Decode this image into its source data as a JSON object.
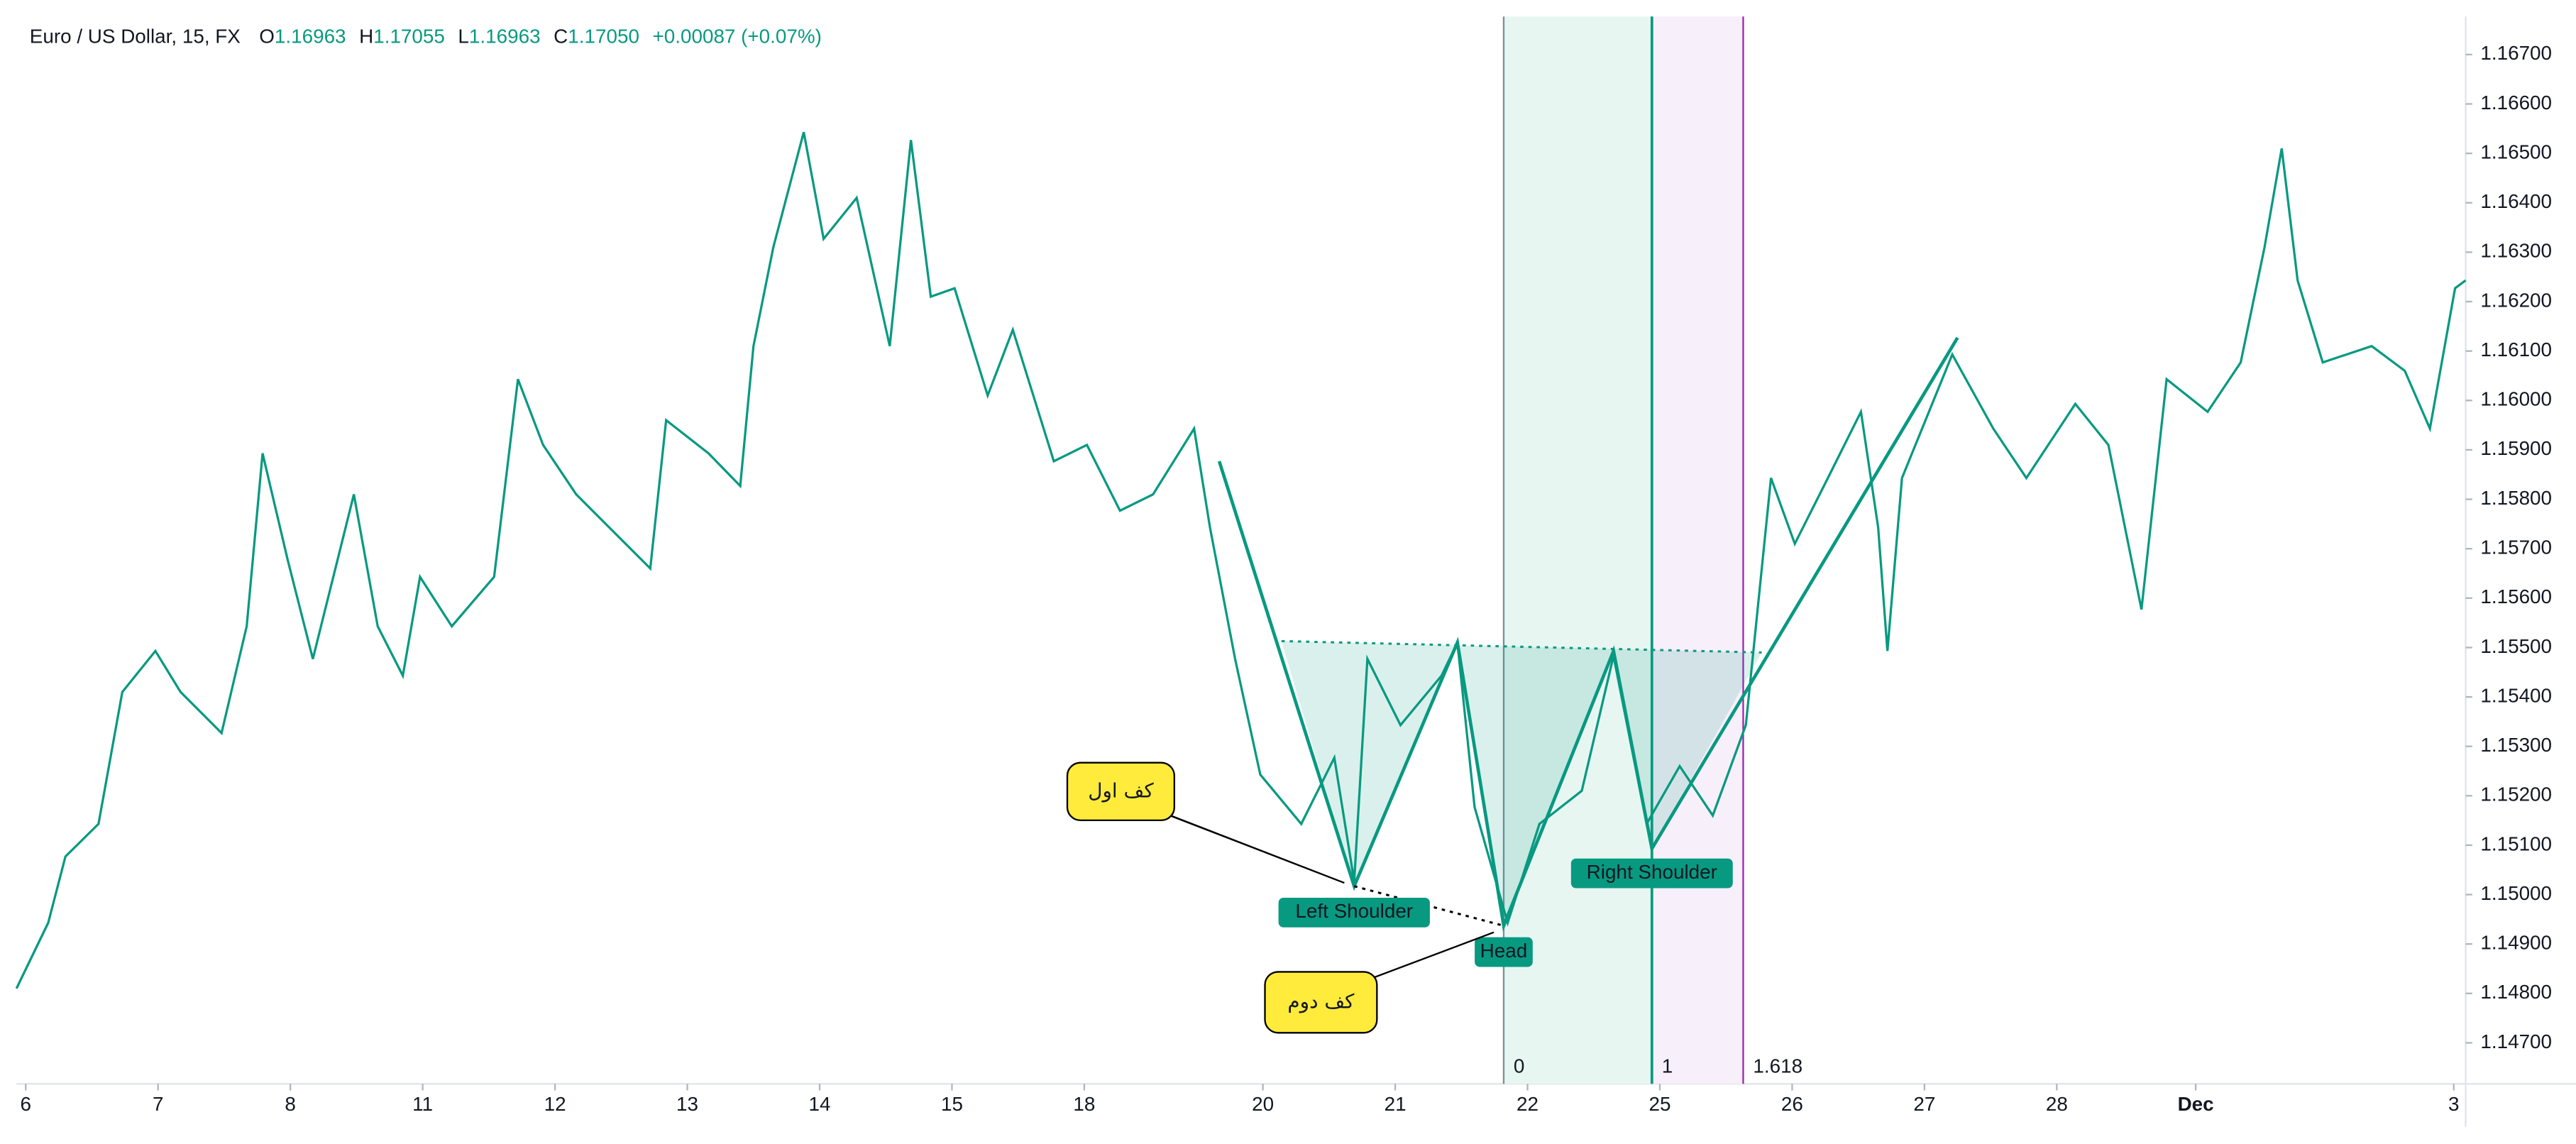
{
  "header": {
    "symbol": "Euro / US Dollar, 15, FX",
    "fields": [
      {
        "label": "O",
        "value": "1.16963"
      },
      {
        "label": "H",
        "value": "1.17055"
      },
      {
        "label": "L",
        "value": "1.16963"
      },
      {
        "label": "C",
        "value": "1.17050"
      }
    ],
    "change": "+0.00087 (+0.07%)"
  },
  "chart_data": {
    "type": "line",
    "color": "#089981",
    "grid": false,
    "xlim": [
      -0.07,
      18.44
    ],
    "ylim": [
      1.14617,
      1.16777
    ],
    "xticks": [
      {
        "value": 0,
        "label": "6"
      },
      {
        "value": 1,
        "label": "7"
      },
      {
        "value": 2,
        "label": "8"
      },
      {
        "value": 3,
        "label": "11"
      },
      {
        "value": 4,
        "label": "12"
      },
      {
        "value": 5,
        "label": "13"
      },
      {
        "value": 6,
        "label": "14"
      },
      {
        "value": 7,
        "label": "15"
      },
      {
        "value": 8,
        "label": "18"
      },
      {
        "value": 9.35,
        "label": "20"
      },
      {
        "value": 10.35,
        "label": "21"
      },
      {
        "value": 11.35,
        "label": "22"
      },
      {
        "value": 12.35,
        "label": "25"
      },
      {
        "value": 13.35,
        "label": "26"
      },
      {
        "value": 14.35,
        "label": "27"
      },
      {
        "value": 15.35,
        "label": "28"
      },
      {
        "value": 16.4,
        "label": "Dec"
      },
      {
        "value": 18.35,
        "label": "3"
      }
    ],
    "yticks": [
      {
        "value": 1.147,
        "label": "1.14700"
      },
      {
        "value": 1.148,
        "label": "1.14800"
      },
      {
        "value": 1.149,
        "label": "1.14900"
      },
      {
        "value": 1.15,
        "label": "1.15000"
      },
      {
        "value": 1.151,
        "label": "1.15100"
      },
      {
        "value": 1.152,
        "label": "1.15200"
      },
      {
        "value": 1.153,
        "label": "1.15300"
      },
      {
        "value": 1.154,
        "label": "1.15400"
      },
      {
        "value": 1.155,
        "label": "1.15500"
      },
      {
        "value": 1.156,
        "label": "1.15600"
      },
      {
        "value": 1.157,
        "label": "1.15700"
      },
      {
        "value": 1.158,
        "label": "1.15800"
      },
      {
        "value": 1.159,
        "label": "1.15900"
      },
      {
        "value": 1.16,
        "label": "1.16000"
      },
      {
        "value": 1.161,
        "label": "1.16100"
      },
      {
        "value": 1.162,
        "label": "1.16200"
      },
      {
        "value": 1.163,
        "label": "1.16300"
      },
      {
        "value": 1.164,
        "label": "1.16400"
      },
      {
        "value": 1.165,
        "label": "1.16500"
      },
      {
        "value": 1.166,
        "label": "1.16600"
      },
      {
        "value": 1.167,
        "label": "1.16700"
      }
    ],
    "x": [
      -0.07,
      0.17,
      0.3,
      0.55,
      0.73,
      0.98,
      1.17,
      1.48,
      1.67,
      1.79,
      1.98,
      2.17,
      2.48,
      2.66,
      2.85,
      2.98,
      3.22,
      3.54,
      3.72,
      3.91,
      4.16,
      4.41,
      4.72,
      4.84,
      5.16,
      5.4,
      5.5,
      5.65,
      5.88,
      6.03,
      6.28,
      6.53,
      6.69,
      6.84,
      7.02,
      7.27,
      7.46,
      7.77,
      8.02,
      8.27,
      8.52,
      8.83,
      8.95,
      9.14,
      9.33,
      9.64,
      9.89,
      10.04,
      10.14,
      10.39,
      10.7,
      10.82,
      10.95,
      11.2,
      11.44,
      11.76,
      12.0,
      12.25,
      12.5,
      12.75,
      13.0,
      13.19,
      13.37,
      13.62,
      13.87,
      14.0,
      14.07,
      14.18,
      14.56,
      14.87,
      15.12,
      15.49,
      15.74,
      15.99,
      16.18,
      16.49,
      16.74,
      16.92,
      17.05,
      17.17,
      17.36,
      17.73,
      17.98,
      18.17,
      18.36,
      18.44
    ],
    "values": [
      1.1481,
      1.14943,
      1.15077,
      1.15143,
      1.1541,
      1.15493,
      1.1541,
      1.15327,
      1.15543,
      1.15893,
      1.15677,
      1.15477,
      1.1581,
      1.15543,
      1.15443,
      1.15643,
      1.15543,
      1.15643,
      1.16043,
      1.1591,
      1.1581,
      1.15743,
      1.1566,
      1.1596,
      1.15893,
      1.15827,
      1.1611,
      1.1631,
      1.16543,
      1.16327,
      1.1641,
      1.1611,
      1.16527,
      1.1621,
      1.16227,
      1.1601,
      1.16143,
      1.15877,
      1.1591,
      1.15777,
      1.1581,
      1.15943,
      1.15743,
      1.15477,
      1.15243,
      1.15143,
      1.15277,
      1.15027,
      1.15477,
      1.15343,
      1.15443,
      1.1551,
      1.15177,
      1.14943,
      1.15143,
      1.1521,
      1.15483,
      1.15143,
      1.1526,
      1.1516,
      1.15343,
      1.15843,
      1.1571,
      1.15843,
      1.15977,
      1.15743,
      1.15493,
      1.15843,
      1.16093,
      1.15943,
      1.15843,
      1.15993,
      1.1591,
      1.15577,
      1.16043,
      1.15977,
      1.16077,
      1.1631,
      1.1651,
      1.16243,
      1.16077,
      1.1611,
      1.1606,
      1.15943,
      1.16227,
      1.16243
    ],
    "pattern": {
      "x": [
        9.02,
        10.04,
        10.82,
        11.17,
        12.0,
        12.29,
        14.6
      ],
      "values": [
        1.15877,
        1.15017,
        1.1551,
        1.14937,
        1.15493,
        1.15093,
        1.16127
      ],
      "labels": [
        {
          "point": 1,
          "text": "Left Shoulder"
        },
        {
          "point": 3,
          "text": "Head"
        },
        {
          "point": 5,
          "text": "Right Shoulder"
        }
      ],
      "neckline": {
        "x": [
          9.49,
          13.12
        ],
        "values": [
          1.15513,
          1.1549
        ]
      }
    },
    "fib": [
      {
        "level": 0,
        "x": 11.17
      },
      {
        "level": 1,
        "x": 12.29
      },
      {
        "level": 1.618,
        "x": 12.98
      }
    ],
    "annotations": [
      {
        "text": "کف اول",
        "point": 1
      },
      {
        "text": "کف دوم",
        "point": 3
      }
    ]
  }
}
